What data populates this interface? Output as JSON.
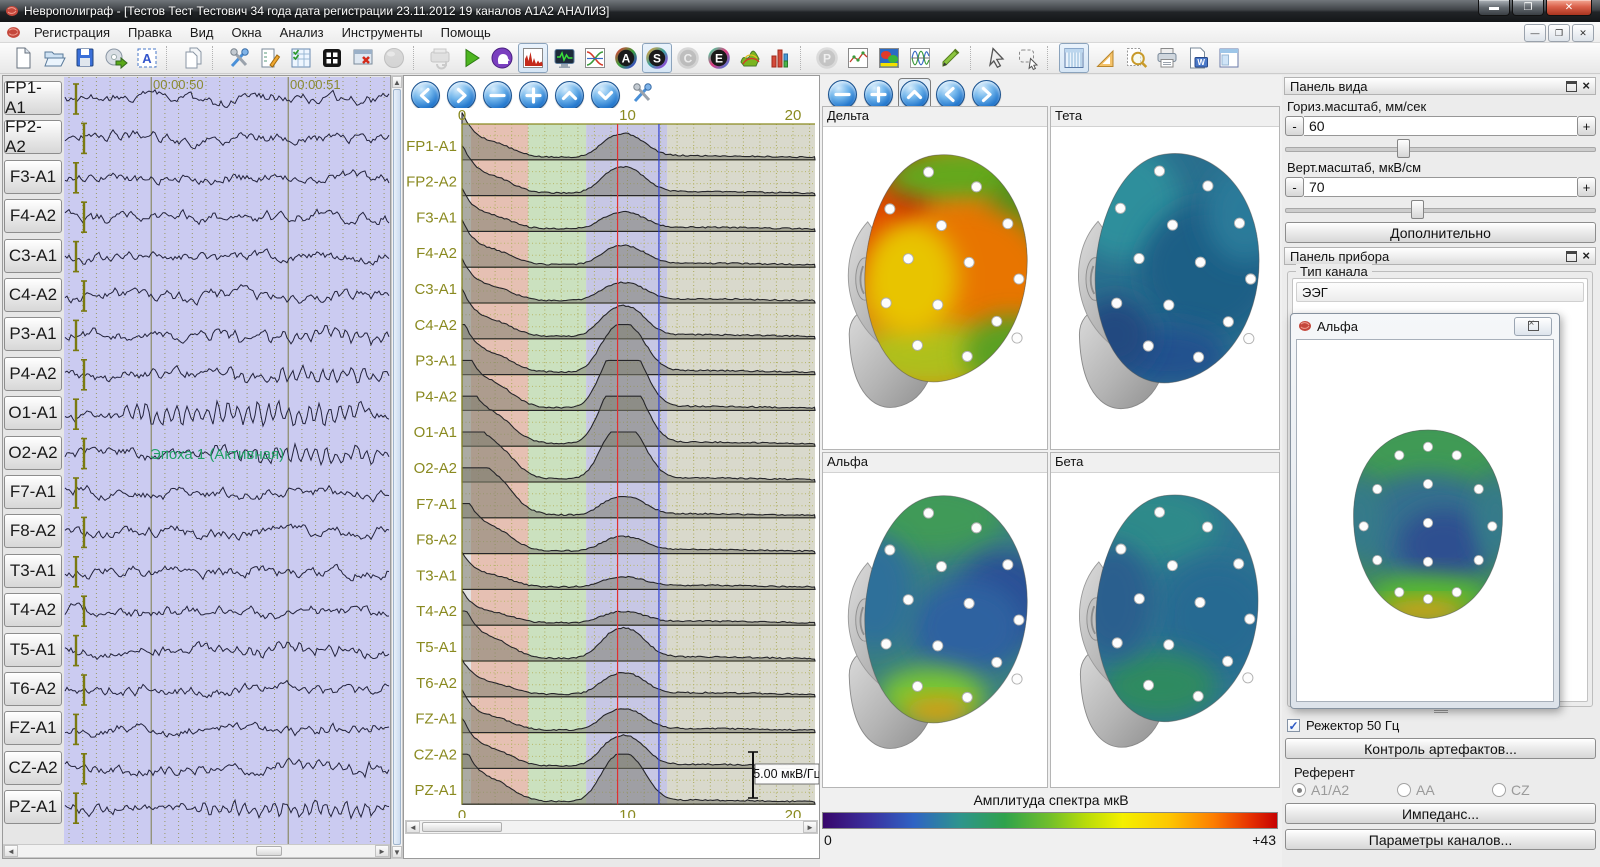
{
  "window": {
    "title": "Неврополиграф - [Тестов Тест Тестович 34 года дата регистрации 23.11.2012 19 каналов А1А2 АНАЛИЗ]"
  },
  "menu": {
    "items": [
      "Регистрация",
      "Правка",
      "Вид",
      "Окна",
      "Анализ",
      "Инструменты",
      "Помощь"
    ]
  },
  "toolbar": {
    "groups": [
      [
        "new-document",
        "open-file",
        "save-file",
        "export-cd",
        "select-area-a"
      ],
      [
        "copy-epoch"
      ],
      [
        "tools-settings",
        "montage-editor",
        "table-check",
        "grid-view",
        "close-window-red",
        "sphere"
      ],
      [
        "record",
        "play-analysis",
        "head-analysis",
        "spectrum-histogram",
        "signal-monitor",
        "crossing-curves",
        "circle-a",
        "circle-s",
        "circle-c",
        "circle-e",
        "surface-3d",
        "histogram-bars"
      ],
      [
        "circle-p",
        "trend-graph",
        "brain-map",
        "poly-waves",
        "marker-pen"
      ],
      [
        "cursor-arrow",
        "region-select"
      ],
      [
        "table-columns",
        "set-square",
        "zoom-search",
        "printer",
        "report-doc",
        "panel-layout"
      ]
    ],
    "selected": [
      "spectrum-histogram",
      "circle-s",
      "table-columns"
    ],
    "disabled": [
      "sphere",
      "record",
      "circle-c",
      "circle-p"
    ]
  },
  "eeg": {
    "channels": [
      "FP1-A1",
      "FP2-A2",
      "F3-A1",
      "F4-A2",
      "C3-A1",
      "C4-A2",
      "P3-A1",
      "P4-A2",
      "O1-A1",
      "O2-A2",
      "F7-A1",
      "F8-A2",
      "T3-A1",
      "T4-A2",
      "T5-A1",
      "T6-A2",
      "FZ-A1",
      "CZ-A2",
      "PZ-A1"
    ],
    "time_labels": [
      "00:00:50",
      "00:00:51"
    ],
    "epoch_label": "Эпоха 1 (Активная)"
  },
  "spectrum": {
    "x_ticks": [
      "0",
      "10",
      "20"
    ],
    "scale_label": "5.00 мкВ/Гц"
  },
  "maps": {
    "titles": [
      "Дельта",
      "Тета",
      "Альфа",
      "Бета"
    ],
    "colorbar_title": "Амплитуда спектра мкВ",
    "colorbar_min": "0",
    "colorbar_max": "+43"
  },
  "view_panel": {
    "title": "Панель вида",
    "horiz_label": "Гориз.масштаб, мм/сек",
    "horiz_value": "60",
    "vert_label": "Верт.масштаб, мкВ/см",
    "vert_value": "70",
    "more_button": "Дополнительно"
  },
  "device_panel": {
    "title": "Панель прибора",
    "channel_type_label": "Тип канала",
    "channel_type_value": "ЭЭГ",
    "notch_label": "Режектор 50 Гц",
    "artifacts_button": "Контроль артефактов...",
    "referent_label": "Референт",
    "referent_options": [
      "A1/A2",
      "AA",
      "CZ"
    ],
    "impedance_button": "Импеданс...",
    "channel_params_button": "Параметры каналов..."
  },
  "alpha_window": {
    "title": "Альфа"
  },
  "colors": {
    "accent_blue": "#1b70c8",
    "eeg_bg": "#cbcbf1",
    "olive": "#8a8a20",
    "epoch_green": "#21a065",
    "close_red": "#c23b2a"
  }
}
